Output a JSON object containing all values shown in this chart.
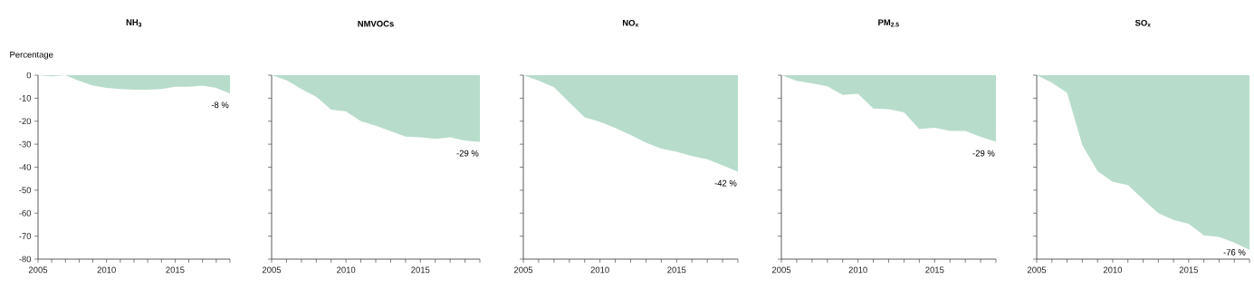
{
  "chart_data": [
    {
      "type": "area",
      "title": "NH$_{3}$",
      "ylabel": "Percentage",
      "color": "#b8dccb",
      "x": [
        2005,
        2006,
        2007,
        2008,
        2009,
        2010,
        2011,
        2012,
        2013,
        2014,
        2015,
        2016,
        2017,
        2018,
        2019
      ],
      "values": [
        0,
        -0.5,
        0,
        -2.5,
        -4.5,
        -5.5,
        -6,
        -6.3,
        -6.3,
        -6,
        -5,
        -5,
        -4.5,
        -5.5,
        -8
      ],
      "xlim": [
        2005,
        2019
      ],
      "ylim": [
        -80,
        0
      ],
      "xticks": [
        2005,
        {
          "value": 2006,
          "label": null
        },
        {
          "value": 2007,
          "label": null
        },
        {
          "value": 2008,
          "label": null
        },
        {
          "value": 2009,
          "label": null
        },
        2010,
        {
          "value": 2011,
          "label": null
        },
        {
          "value": 2012,
          "label": null
        },
        {
          "value": 2013,
          "label": null
        },
        {
          "value": 2014,
          "label": null
        },
        2015,
        {
          "value": 2016,
          "label": null
        },
        {
          "value": 2017,
          "label": null
        },
        {
          "value": 2018,
          "label": null
        },
        {
          "value": 2019,
          "label": null
        }
      ],
      "yticks": [
        -80,
        -70,
        -60,
        -50,
        -40,
        -30,
        -20,
        -10,
        0
      ],
      "annotations": [
        "-8 %"
      ]
    },
    {
      "type": "area",
      "title": "NMVOCs",
      "color": "#b8dccb",
      "x": [
        2005,
        2006,
        2007,
        2008,
        2009,
        2010,
        2011,
        2012,
        2013,
        2014,
        2015,
        2016,
        2017,
        2018,
        2019
      ],
      "values": [
        0,
        -2.2,
        -6,
        -9.4,
        -15,
        -15.8,
        -20,
        -22,
        -24.3,
        -26.7,
        -27,
        -27.7,
        -27,
        -28.5,
        -29
      ],
      "xlim": [
        2005,
        2019
      ],
      "ylim": [
        -80,
        0
      ],
      "xticks": [
        2005,
        {
          "value": 2006,
          "label": null
        },
        {
          "value": 2007,
          "label": null
        },
        {
          "value": 2008,
          "label": null
        },
        {
          "value": 2009,
          "label": null
        },
        2010,
        {
          "value": 2011,
          "label": null
        },
        {
          "value": 2012,
          "label": null
        },
        {
          "value": 2013,
          "label": null
        },
        {
          "value": 2014,
          "label": null
        },
        2015,
        {
          "value": 2016,
          "label": null
        },
        {
          "value": 2017,
          "label": null
        },
        {
          "value": 2018,
          "label": null
        },
        {
          "value": 2019,
          "label": null
        }
      ],
      "yticks": [
        -80,
        -70,
        -60,
        -50,
        -40,
        -30,
        -20,
        -10,
        0
      ],
      "tick_labels": "x",
      "annotations": [
        "-29 %"
      ]
    },
    {
      "type": "area",
      "title": "NO$_{x}$",
      "color": "#b8dccb",
      "x": [
        2005,
        2006,
        2007,
        2008,
        2009,
        2010,
        2011,
        2012,
        2013,
        2014,
        2015,
        2016,
        2017,
        2018,
        2019
      ],
      "values": [
        0,
        -2.4,
        -5.2,
        -11.8,
        -18.3,
        -20.3,
        -23,
        -26,
        -29.4,
        -31.9,
        -33.3,
        -35.2,
        -36.6,
        -39.2,
        -42
      ],
      "xlim": [
        2005,
        2019
      ],
      "ylim": [
        -80,
        0
      ],
      "xticks": [
        2005,
        {
          "value": 2006,
          "label": null
        },
        {
          "value": 2007,
          "label": null
        },
        {
          "value": 2008,
          "label": null
        },
        {
          "value": 2009,
          "label": null
        },
        2010,
        {
          "value": 2011,
          "label": null
        },
        {
          "value": 2012,
          "label": null
        },
        {
          "value": 2013,
          "label": null
        },
        {
          "value": 2014,
          "label": null
        },
        2015,
        {
          "value": 2016,
          "label": null
        },
        {
          "value": 2017,
          "label": null
        },
        {
          "value": 2018,
          "label": null
        },
        {
          "value": 2019,
          "label": null
        }
      ],
      "yticks": [
        -80,
        -70,
        -60,
        -50,
        -40,
        -30,
        -20,
        -10,
        0
      ],
      "tick_labels": "x",
      "annotations": [
        "-42 %"
      ]
    },
    {
      "type": "area",
      "title": "PM$_{2.5}$",
      "color": "#b8dccb",
      "x": [
        2005,
        2006,
        2007,
        2008,
        2009,
        2010,
        2011,
        2012,
        2013,
        2014,
        2015,
        2016,
        2017,
        2018,
        2019
      ],
      "values": [
        0,
        -2.5,
        -3.5,
        -4.8,
        -8.6,
        -8.1,
        -14.5,
        -14.8,
        -16.2,
        -23.4,
        -22.9,
        -24.2,
        -24.2,
        -26.8,
        -29
      ],
      "xlim": [
        2005,
        2019
      ],
      "ylim": [
        -80,
        0
      ],
      "xticks": [
        2005,
        {
          "value": 2006,
          "label": null
        },
        {
          "value": 2007,
          "label": null
        },
        {
          "value": 2008,
          "label": null
        },
        {
          "value": 2009,
          "label": null
        },
        2010,
        {
          "value": 2011,
          "label": null
        },
        {
          "value": 2012,
          "label": null
        },
        {
          "value": 2013,
          "label": null
        },
        {
          "value": 2014,
          "label": null
        },
        2015,
        {
          "value": 2016,
          "label": null
        },
        {
          "value": 2017,
          "label": null
        },
        {
          "value": 2018,
          "label": null
        },
        {
          "value": 2019,
          "label": null
        }
      ],
      "yticks": [
        -80,
        -70,
        -60,
        -50,
        -40,
        -30,
        -20,
        -10,
        0
      ],
      "tick_labels": "x",
      "annotations": [
        "-29 %"
      ]
    },
    {
      "type": "area",
      "title": "SO$_{x}$",
      "color": "#b8dccb",
      "x": [
        2005,
        2006,
        2007,
        2008,
        2009,
        2010,
        2011,
        2012,
        2013,
        2014,
        2015,
        2016,
        2017,
        2018,
        2019
      ],
      "values": [
        0,
        -3.3,
        -7.7,
        -30.3,
        -41.7,
        -46.4,
        -47.8,
        -54,
        -60,
        -63,
        -64.6,
        -69.7,
        -70.3,
        -72.8,
        -76
      ],
      "xlim": [
        2005,
        2019
      ],
      "ylim": [
        -80,
        0
      ],
      "xticks": [
        2005,
        {
          "value": 2006,
          "label": null
        },
        {
          "value": 2007,
          "label": null
        },
        {
          "value": 2008,
          "label": null
        },
        {
          "value": 2009,
          "label": null
        },
        2010,
        {
          "value": 2011,
          "label": null
        },
        {
          "value": 2012,
          "label": null
        },
        {
          "value": 2013,
          "label": null
        },
        {
          "value": 2014,
          "label": null
        },
        2015,
        {
          "value": 2016,
          "label": null
        },
        {
          "value": 2017,
          "label": null
        },
        {
          "value": 2018,
          "label": null
        },
        {
          "value": 2019,
          "label": null
        }
      ],
      "yticks": [
        -80,
        -70,
        -60,
        -50,
        -40,
        -30,
        -20,
        -10,
        0
      ],
      "tick_labels": "x",
      "annotations": [
        "-76 %"
      ]
    }
  ]
}
